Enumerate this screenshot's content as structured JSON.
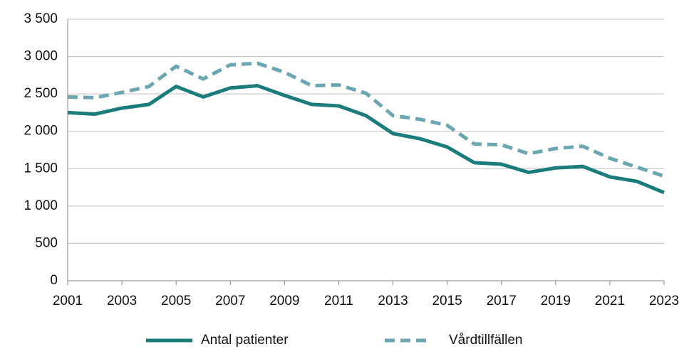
{
  "chart_data": {
    "type": "line",
    "x": [
      2001,
      2002,
      2003,
      2004,
      2005,
      2006,
      2007,
      2008,
      2009,
      2010,
      2011,
      2012,
      2013,
      2014,
      2015,
      2016,
      2017,
      2018,
      2019,
      2020,
      2021,
      2022,
      2023
    ],
    "series": [
      {
        "name": "Antal patienter",
        "color": "#1b7d7b",
        "dash": false,
        "values": [
          2250,
          2230,
          2310,
          2360,
          2600,
          2460,
          2580,
          2610,
          2480,
          2360,
          2340,
          2210,
          1970,
          1900,
          1790,
          1580,
          1560,
          1450,
          1510,
          1530,
          1390,
          1330,
          1180
        ]
      },
      {
        "name": "Vårdtillfällen",
        "color": "#6ba6b1",
        "dash": true,
        "values": [
          2460,
          2450,
          2520,
          2600,
          2870,
          2700,
          2890,
          2910,
          2790,
          2610,
          2620,
          2510,
          2210,
          2160,
          2080,
          1830,
          1820,
          1700,
          1770,
          1800,
          1640,
          1520,
          1400
        ]
      }
    ],
    "xlim": [
      2001,
      2023
    ],
    "xticks": [
      2001,
      2003,
      2005,
      2007,
      2009,
      2011,
      2013,
      2015,
      2017,
      2019,
      2021,
      2023
    ],
    "ylim": [
      0,
      3500
    ],
    "yticks": [
      0,
      500,
      {
        "value": 1000,
        "label": "1 000"
      },
      {
        "value": 1500,
        "label": "1 500"
      },
      {
        "value": 2000,
        "label": "2 000"
      },
      {
        "value": 2500,
        "label": "2 500"
      },
      {
        "value": 3000,
        "label": "3 000"
      },
      {
        "value": 3500,
        "label": "3 500"
      }
    ],
    "grid": true,
    "legend": "bottom"
  }
}
